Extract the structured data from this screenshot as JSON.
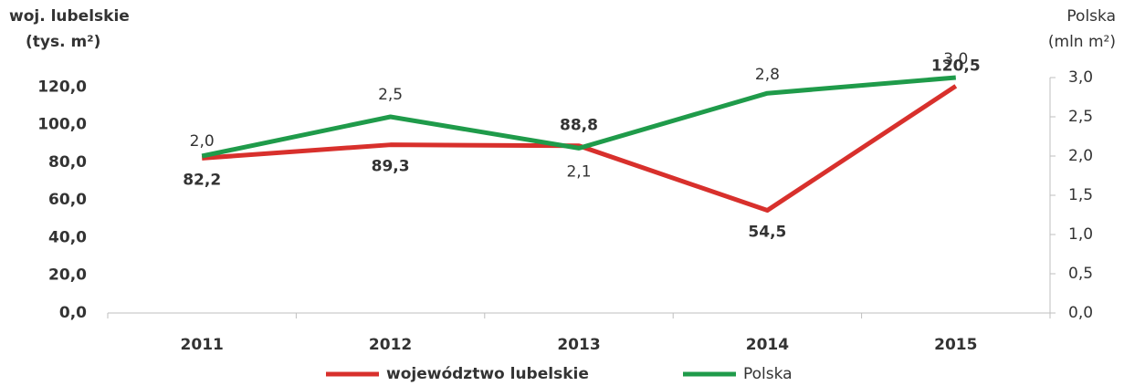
{
  "chart_data": {
    "type": "line",
    "ylabel": [
      "woj. lubelskie",
      "(tys. m²)"
    ],
    "y2label": [
      "Polska",
      "(mln m²)"
    ],
    "categories": [
      "2011",
      "2012",
      "2013",
      "2014",
      "2015"
    ],
    "series": [
      {
        "name": "województwo lubelskie",
        "color": "#d8302c",
        "values": [
          82.2,
          89.3,
          88.8,
          54.5,
          120.5
        ],
        "value_labels": [
          "82,2",
          "89,3",
          "88,8",
          "54,5",
          "120,5"
        ]
      },
      {
        "name": "Polska",
        "color": "#1f9b4a",
        "axis": "y2",
        "values": [
          2.0,
          2.5,
          2.1,
          2.8,
          3.0
        ],
        "value_labels": [
          "2,0",
          "2,5",
          "2,1",
          "2,8",
          "3,0"
        ]
      }
    ],
    "ylim": [
      0,
      125
    ],
    "yticks": [
      {
        "value": 0,
        "label": "0,0"
      },
      {
        "value": 20,
        "label": "20,0"
      },
      {
        "value": 40,
        "label": "40,0"
      },
      {
        "value": 60,
        "label": "60,0"
      },
      {
        "value": 80,
        "label": "80,0"
      },
      {
        "value": 100,
        "label": "100,0"
      },
      {
        "value": 120,
        "label": "120,0"
      }
    ],
    "y2lim": [
      0,
      3
    ],
    "y2ticks": [
      {
        "value": 0,
        "label": "0,0"
      },
      {
        "value": 0.5,
        "label": "0,5"
      },
      {
        "value": 1,
        "label": "1,0"
      },
      {
        "value": 1.5,
        "label": "1,5"
      },
      {
        "value": 2,
        "label": "2,0"
      },
      {
        "value": 2.5,
        "label": "2,5"
      },
      {
        "value": 3,
        "label": "3,0"
      }
    ]
  }
}
